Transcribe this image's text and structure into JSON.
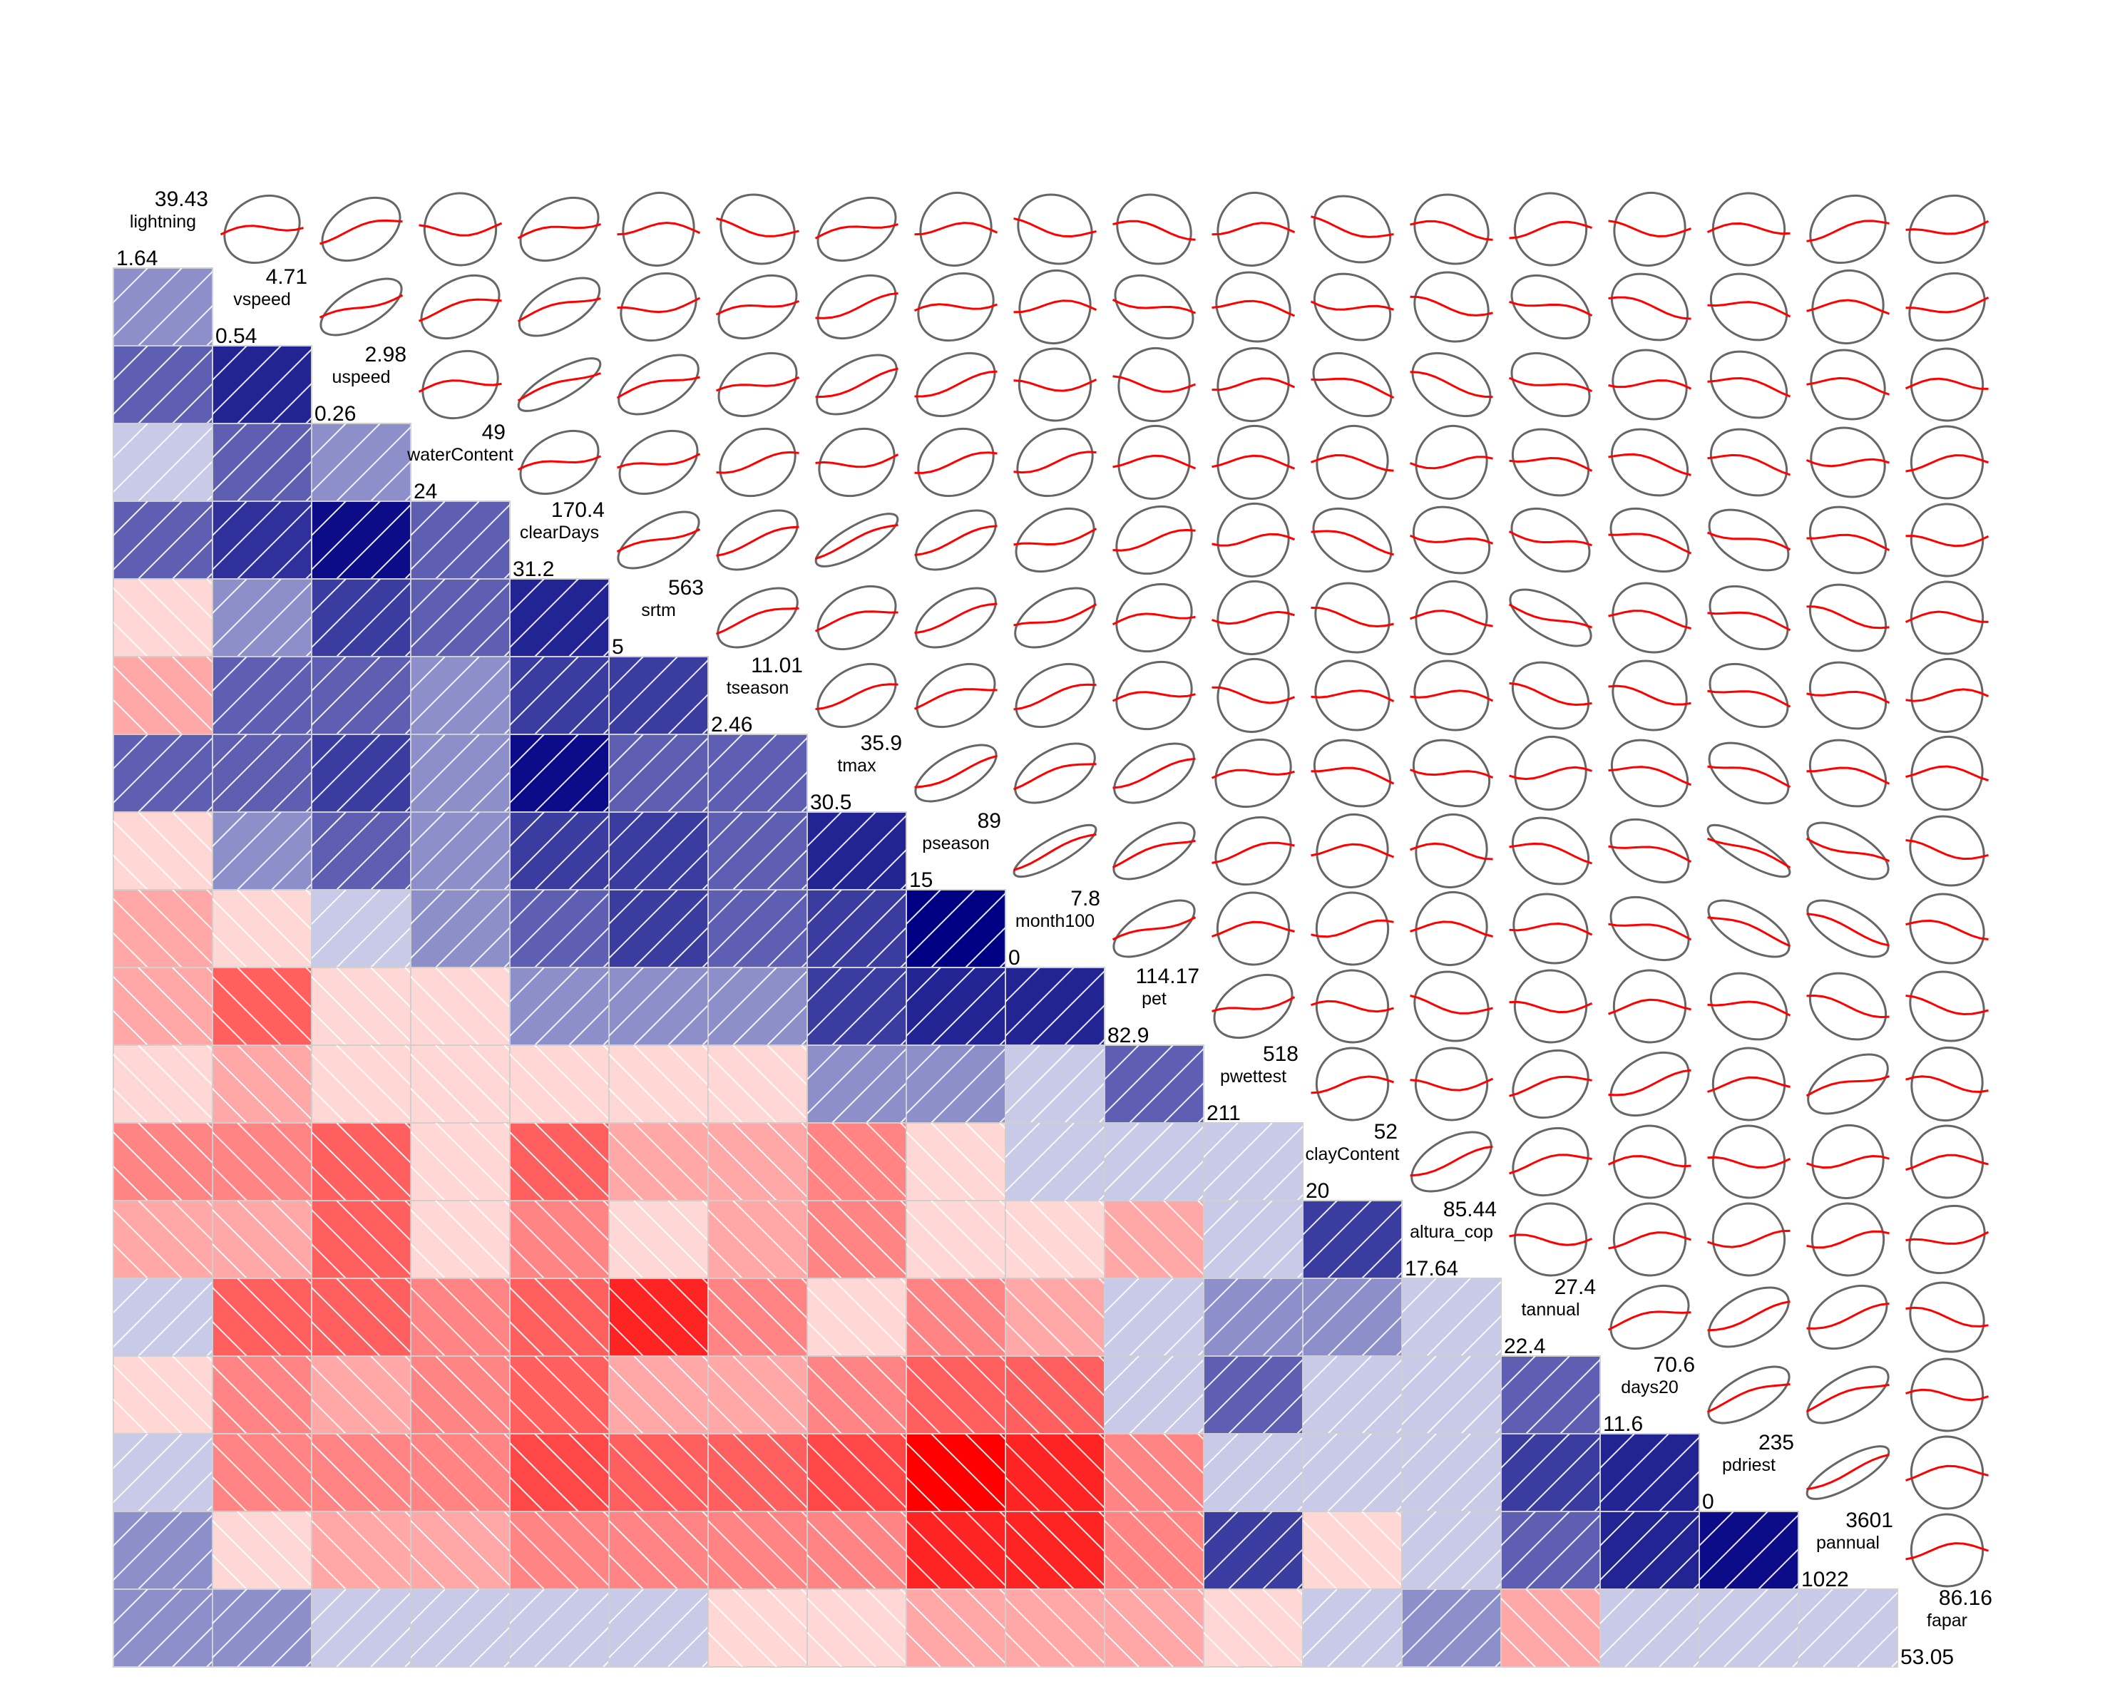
{
  "chart_data": {
    "type": "heatmap",
    "title": "",
    "lower_panel": "shade",
    "upper_panel": "ellipse with loess smoother",
    "variables": [
      {
        "name": "lightning",
        "min": "1.64",
        "max": "39.43"
      },
      {
        "name": "vspeed",
        "min": "0.54",
        "max": "4.71"
      },
      {
        "name": "uspeed",
        "min": "0.26",
        "max": "2.98"
      },
      {
        "name": "waterContent",
        "min": "24",
        "max": "49"
      },
      {
        "name": "clearDays",
        "min": "31.2",
        "max": "170.4"
      },
      {
        "name": "srtm",
        "min": "5",
        "max": "563"
      },
      {
        "name": "tseason",
        "min": "2.46",
        "max": "11.01"
      },
      {
        "name": "tmax",
        "min": "30.5",
        "max": "35.9"
      },
      {
        "name": "pseason",
        "min": "15",
        "max": "89"
      },
      {
        "name": "month100",
        "min": "0",
        "max": "7.8"
      },
      {
        "name": "pet",
        "min": "82.9",
        "max": "114.17"
      },
      {
        "name": "pwettest",
        "min": "211",
        "max": "518"
      },
      {
        "name": "clayContent",
        "min": "20",
        "max": "52"
      },
      {
        "name": "altura_cop",
        "min": "17.64",
        "max": "85.44"
      },
      {
        "name": "tannual",
        "min": "22.4",
        "max": "27.4"
      },
      {
        "name": "days20",
        "min": "11.6",
        "max": "70.6"
      },
      {
        "name": "pdriest",
        "min": "0",
        "max": "235"
      },
      {
        "name": "pannual",
        "min": "1022",
        "max": "3601"
      },
      {
        "name": "fapar",
        "min": "53.05",
        "max": "86.16"
      }
    ],
    "correlations": [
      [],
      [
        0.4
      ],
      [
        0.6,
        0.85
      ],
      [
        0.15,
        0.6,
        0.4
      ],
      [
        0.6,
        0.8,
        0.95,
        0.6
      ],
      [
        -0.1,
        0.4,
        0.75,
        0.6,
        0.85
      ],
      [
        -0.3,
        0.6,
        0.6,
        0.4,
        0.75,
        0.75
      ],
      [
        0.6,
        0.6,
        0.75,
        0.4,
        0.95,
        0.6,
        0.6
      ],
      [
        -0.1,
        0.4,
        0.6,
        0.4,
        0.75,
        0.75,
        0.6,
        0.85
      ],
      [
        -0.3,
        -0.1,
        0.15,
        0.4,
        0.6,
        0.75,
        0.6,
        0.75,
        1.0
      ],
      [
        -0.3,
        -0.6,
        -0.1,
        -0.1,
        0.4,
        0.4,
        0.4,
        0.75,
        0.85,
        0.85
      ],
      [
        -0.1,
        -0.3,
        -0.1,
        -0.1,
        -0.1,
        -0.1,
        -0.1,
        0.4,
        0.4,
        0.15,
        0.6
      ],
      [
        -0.45,
        -0.45,
        -0.6,
        -0.1,
        -0.6,
        -0.3,
        -0.3,
        -0.45,
        -0.1,
        0.15,
        0.15,
        0.15
      ],
      [
        -0.3,
        -0.3,
        -0.6,
        -0.1,
        -0.45,
        -0.1,
        -0.3,
        -0.45,
        -0.1,
        -0.1,
        -0.3,
        0.15,
        0.75
      ],
      [
        0.15,
        -0.6,
        -0.6,
        -0.45,
        -0.6,
        -0.85,
        -0.45,
        -0.1,
        -0.45,
        -0.3,
        0.15,
        0.4,
        0.4,
        0.15
      ],
      [
        -0.1,
        -0.45,
        -0.3,
        -0.45,
        -0.6,
        -0.3,
        -0.3,
        -0.45,
        -0.6,
        -0.6,
        0.15,
        0.6,
        0.15,
        0.15,
        0.6
      ],
      [
        0.15,
        -0.45,
        -0.45,
        -0.45,
        -0.7,
        -0.6,
        -0.6,
        -0.7,
        -1.0,
        -0.85,
        -0.45,
        0.15,
        0.15,
        0.15,
        0.75,
        0.85
      ],
      [
        0.4,
        -0.1,
        -0.3,
        -0.3,
        -0.45,
        -0.45,
        -0.45,
        -0.45,
        -0.85,
        -0.85,
        -0.45,
        0.75,
        -0.1,
        0.15,
        0.6,
        0.85,
        0.95
      ],
      [
        0.4,
        0.4,
        0.15,
        0.15,
        0.15,
        0.15,
        -0.1,
        -0.1,
        -0.3,
        -0.3,
        -0.3,
        -0.1,
        0.15,
        0.4,
        -0.3,
        0.15,
        0.15,
        0.15
      ]
    ]
  }
}
